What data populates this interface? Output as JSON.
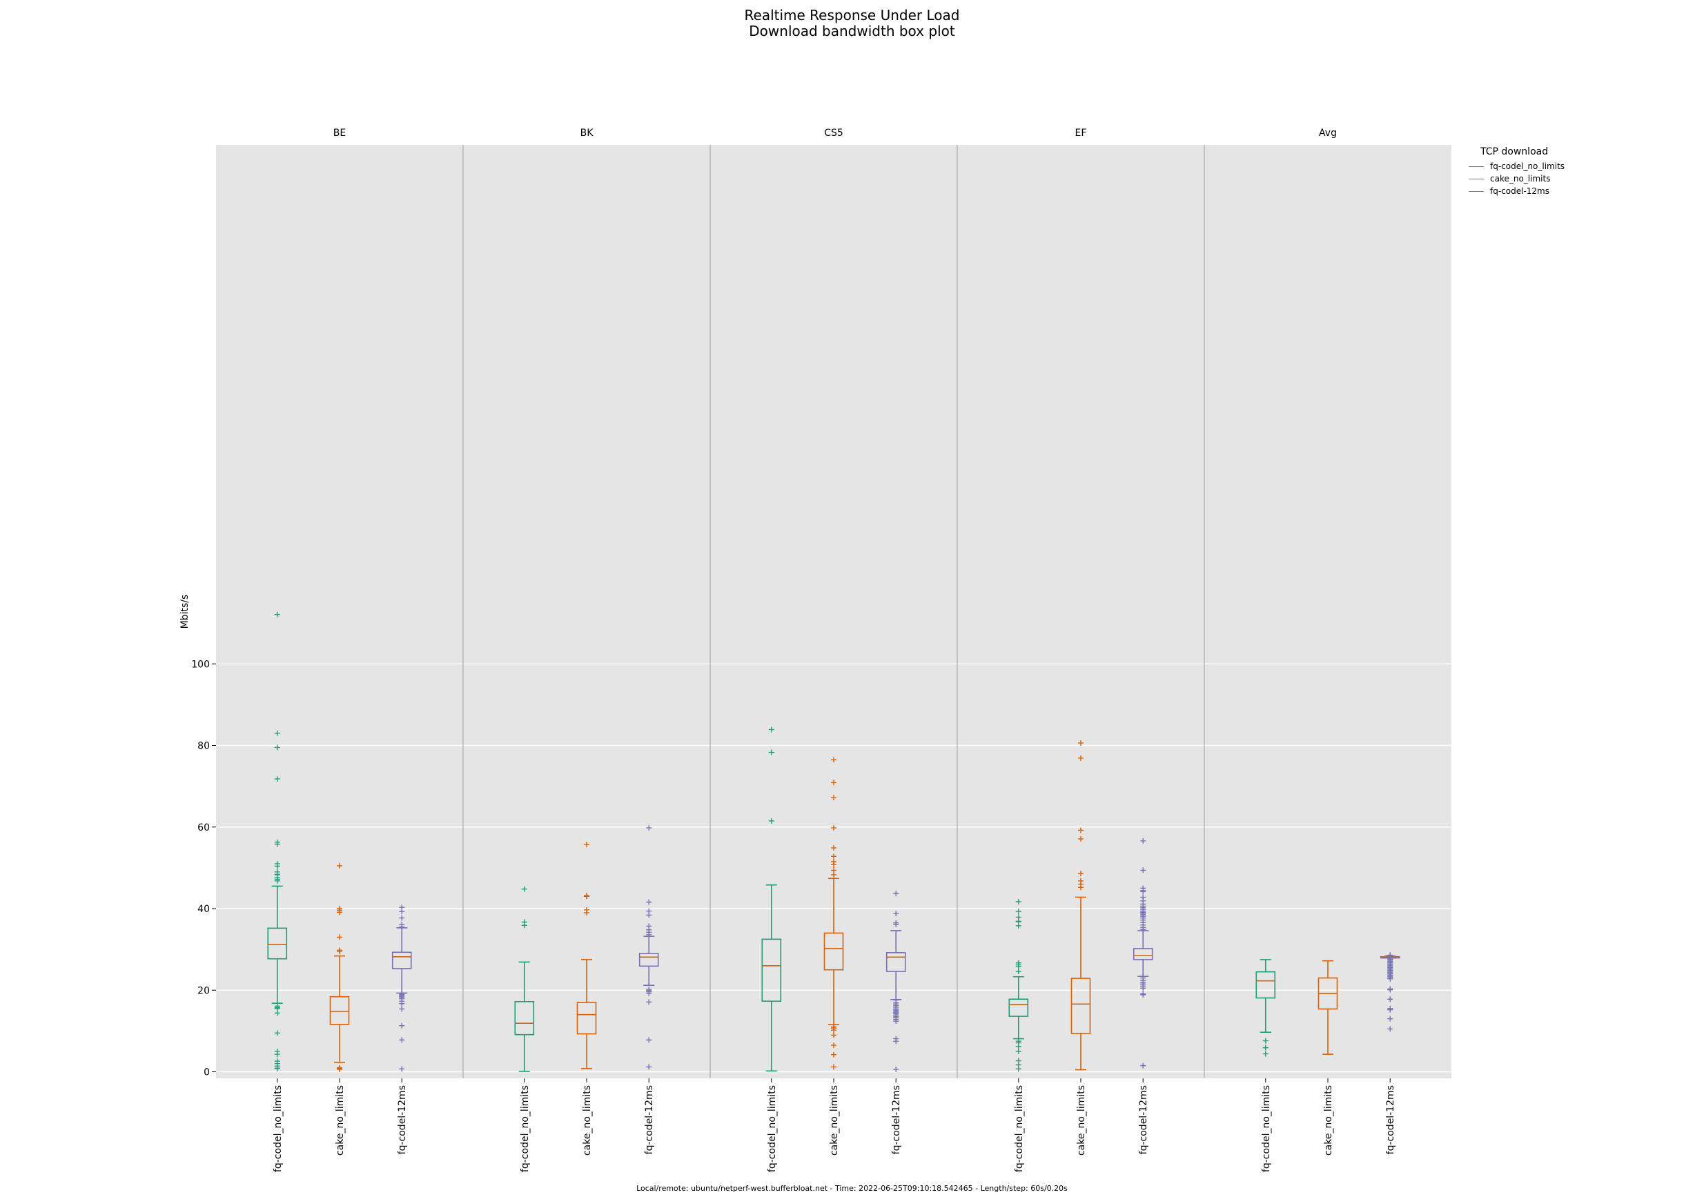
{
  "title": [
    "Realtime Response Under Load",
    "Download bandwidth box plot"
  ],
  "footer": "Local/remote: ubuntu/netperf-west.bufferbloat.net - Time: 2022-06-25T09:10:18.542465 - Length/step: 60s/0.20s",
  "legend": {
    "title": "TCP download",
    "items": [
      {
        "label": "fq-codel_no_limits",
        "color": "#1b9e77"
      },
      {
        "label": "cake_no_limits",
        "color": "#d95f02"
      },
      {
        "label": "fq-codel-12ms",
        "color": "#7570b3"
      }
    ]
  },
  "chart_data": {
    "type": "box",
    "ylabel": "Mbits/s",
    "ylim": [
      -1,
      113
    ],
    "yticks": [
      0,
      20,
      40,
      60,
      80,
      100
    ],
    "grid": true,
    "legend_position": "right",
    "panels": [
      {
        "name": "BE",
        "boxes": [
          {
            "series": "fq-codel_no_limits",
            "color": "#1b9e77",
            "whislo": 16.8,
            "q1": 27.7,
            "med": 31.2,
            "q3": 35.2,
            "whishi": 45.5,
            "fliers": [
              112.1,
              83.0,
              79.5,
              71.8,
              56.3,
              55.8,
              51.0,
              50.4,
              49.0,
              48.4,
              48.3,
              47.6,
              47.2,
              46.8,
              16.1,
              15.7,
              15.5,
              14.4,
              9.5,
              5.0,
              4.3,
              2.6,
              2.0,
              1.4,
              0.9,
              0.8
            ]
          },
          {
            "series": "cake_no_limits",
            "color": "#d95f02",
            "whislo": 2.3,
            "q1": 11.6,
            "med": 14.8,
            "q3": 18.4,
            "whishi": 28.4,
            "fliers": [
              50.5,
              40.0,
              39.6,
              39.1,
              33.0,
              29.8,
              29.5,
              1.0,
              0.8,
              0.6
            ]
          },
          {
            "series": "fq-codel-12ms",
            "color": "#7570b3",
            "whislo": 19.3,
            "q1": 25.3,
            "med": 28.2,
            "q3": 29.3,
            "whishi": 35.3,
            "fliers": [
              40.3,
              39.3,
              37.7,
              36.1,
              35.5,
              19.0,
              18.8,
              18.5,
              18.2,
              17.9,
              17.3,
              16.7,
              15.4,
              11.3,
              7.8,
              0.7
            ]
          }
        ]
      },
      {
        "name": "BK",
        "boxes": [
          {
            "series": "fq-codel_no_limits",
            "color": "#1b9e77",
            "whislo": 0.1,
            "q1": 9.1,
            "med": 11.9,
            "q3": 17.2,
            "whishi": 26.9,
            "fliers": [
              44.8,
              36.7,
              35.9
            ]
          },
          {
            "series": "cake_no_limits",
            "color": "#d95f02",
            "whislo": 0.8,
            "q1": 9.3,
            "med": 14.0,
            "q3": 17.0,
            "whishi": 27.5,
            "fliers": [
              55.7,
              43.2,
              43.0,
              39.7,
              39.0
            ]
          },
          {
            "series": "fq-codel-12ms",
            "color": "#7570b3",
            "whislo": 21.2,
            "q1": 25.9,
            "med": 28.1,
            "q3": 29.0,
            "whishi": 33.2,
            "fliers": [
              59.8,
              41.6,
              39.4,
              38.4,
              35.7,
              34.8,
              34.2,
              33.6,
              20.2,
              19.9,
              19.6,
              19.2,
              17.1,
              7.8,
              1.2
            ]
          }
        ]
      },
      {
        "name": "CS5",
        "boxes": [
          {
            "series": "fq-codel_no_limits",
            "color": "#1b9e77",
            "whislo": 0.2,
            "q1": 17.3,
            "med": 26.0,
            "q3": 32.5,
            "whishi": 45.8,
            "fliers": [
              83.9,
              78.3,
              61.5
            ]
          },
          {
            "series": "cake_no_limits",
            "color": "#d95f02",
            "whislo": 11.6,
            "q1": 25.0,
            "med": 30.2,
            "q3": 34.0,
            "whishi": 47.4,
            "fliers": [
              76.5,
              70.9,
              67.2,
              59.8,
              54.9,
              52.8,
              51.5,
              50.8,
              49.4,
              48.3,
              11.0,
              10.7,
              10.2,
              9.0,
              6.5,
              4.2,
              1.2
            ]
          },
          {
            "series": "fq-codel-12ms",
            "color": "#7570b3",
            "whislo": 17.7,
            "q1": 24.6,
            "med": 28.1,
            "q3": 29.2,
            "whishi": 34.6,
            "fliers": [
              43.7,
              38.8,
              36.5,
              36.1,
              17.6,
              16.9,
              16.6,
              16.2,
              15.8,
              15.4,
              15.1,
              14.8,
              14.5,
              14.2,
              13.9,
              13.5,
              13.2,
              12.8,
              12.4,
              8.1,
              7.5,
              0.6
            ]
          }
        ]
      },
      {
        "name": "EF",
        "boxes": [
          {
            "series": "fq-codel_no_limits",
            "color": "#1b9e77",
            "whislo": 8.1,
            "q1": 13.6,
            "med": 16.5,
            "q3": 17.8,
            "whishi": 23.3,
            "fliers": [
              41.7,
              39.3,
              37.9,
              36.9,
              36.8,
              35.8,
              26.7,
              26.2,
              25.8,
              24.6,
              7.5,
              7.1,
              6.2,
              5.0,
              2.7,
              1.7,
              0.7
            ]
          },
          {
            "series": "cake_no_limits",
            "color": "#d95f02",
            "whislo": 0.5,
            "q1": 9.4,
            "med": 16.6,
            "q3": 22.9,
            "whishi": 42.8,
            "fliers": [
              80.6,
              76.9,
              59.2,
              57.1,
              48.6,
              46.8,
              46.0,
              45.2
            ]
          },
          {
            "series": "fq-codel-12ms",
            "color": "#7570b3",
            "whislo": 23.4,
            "q1": 27.5,
            "med": 28.5,
            "q3": 30.2,
            "whishi": 34.6,
            "fliers": [
              56.6,
              49.4,
              45.0,
              44.4,
              44.2,
              42.8,
              41.9,
              41.1,
              40.6,
              40.2,
              39.8,
              39.4,
              39.1,
              38.8,
              38.5,
              38.1,
              37.7,
              37.2,
              36.6,
              36.0,
              35.4,
              34.9,
              23.0,
              22.4,
              21.9,
              21.5,
              21.0,
              20.5,
              19.1,
              18.9,
              1.5
            ]
          }
        ]
      },
      {
        "name": "Avg",
        "boxes": [
          {
            "series": "fq-codel_no_limits",
            "color": "#1b9e77",
            "whislo": 9.7,
            "q1": 18.1,
            "med": 22.3,
            "q3": 24.5,
            "whishi": 27.5,
            "fliers": [
              7.6,
              5.9,
              4.4
            ]
          },
          {
            "series": "cake_no_limits",
            "color": "#d95f02",
            "whislo": 4.3,
            "q1": 15.4,
            "med": 19.2,
            "q3": 23.0,
            "whishi": 27.2,
            "fliers": []
          },
          {
            "series": "fq-codel-12ms",
            "color": "#7570b3",
            "whislo": 27.9,
            "q1": 27.9,
            "med": 28.1,
            "q3": 28.2,
            "whishi": 28.4,
            "fliers": [
              28.6,
              27.6,
              27.3,
              27.0,
              26.7,
              26.4,
              26.1,
              25.8,
              25.5,
              25.2,
              24.9,
              24.6,
              24.3,
              24.0,
              23.7,
              23.4,
              23.1,
              22.8,
              20.3,
              20.1,
              17.8,
              15.5,
              15.2,
              13.0,
              10.5
            ]
          }
        ]
      }
    ]
  }
}
